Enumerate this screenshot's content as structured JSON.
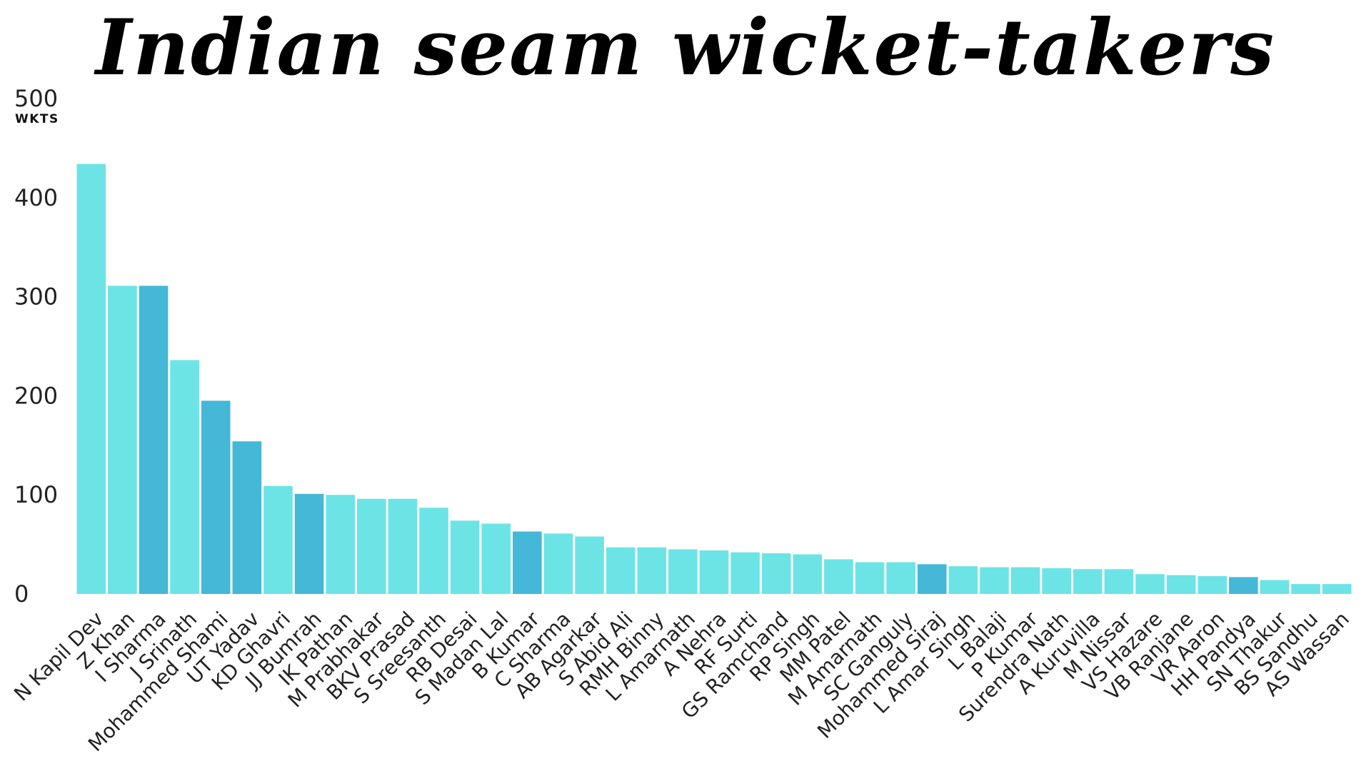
{
  "chart_data": {
    "type": "bar",
    "title": "Indian seam wicket-takers",
    "ylabel": "WKTS",
    "ylim": [
      0,
      500
    ],
    "yticks": [
      0,
      100,
      200,
      300,
      400,
      500
    ],
    "grid": false,
    "legend": "none",
    "colors": {
      "default": "#6ce4e6",
      "highlight": "#44b8d6"
    },
    "categories": [
      "N Kapil Dev",
      "Z Khan",
      "I Sharma",
      "J Srinath",
      "Mohammed Shami",
      "UT Yadav",
      "KD Ghavri",
      "JJ Bumrah",
      "IK Pathan",
      "M Prabhakar",
      "BKV Prasad",
      "S Sreesanth",
      "RB Desai",
      "S Madan Lal",
      "B Kumar",
      "C Sharma",
      "AB Agarkar",
      "S Abid Ali",
      "RMH Binny",
      "L Amarnath",
      "A Nehra",
      "RF Surti",
      "GS Ramchand",
      "RP Singh",
      "MM Patel",
      "M Amarnath",
      "SC Ganguly",
      "Mohammed Siraj",
      "L Amar Singh",
      "L Balaji",
      "P Kumar",
      "Surendra Nath",
      "A Kuruvilla",
      "M Nissar",
      "VS Hazare",
      "VB Ranjane",
      "VR Aaron",
      "HH Pandya",
      "SN Thakur",
      "BS Sandhu",
      "AS Wassan"
    ],
    "values": [
      434,
      311,
      311,
      236,
      195,
      154,
      109,
      101,
      100,
      96,
      96,
      87,
      74,
      71,
      63,
      61,
      58,
      47,
      47,
      45,
      44,
      42,
      41,
      40,
      35,
      32,
      32,
      30,
      28,
      27,
      27,
      26,
      25,
      25,
      20,
      19,
      18,
      17,
      14,
      10,
      10
    ],
    "highlighted": [
      "I Sharma",
      "Mohammed Shami",
      "UT Yadav",
      "JJ Bumrah",
      "B Kumar",
      "Mohammed Siraj",
      "HH Pandya"
    ]
  }
}
